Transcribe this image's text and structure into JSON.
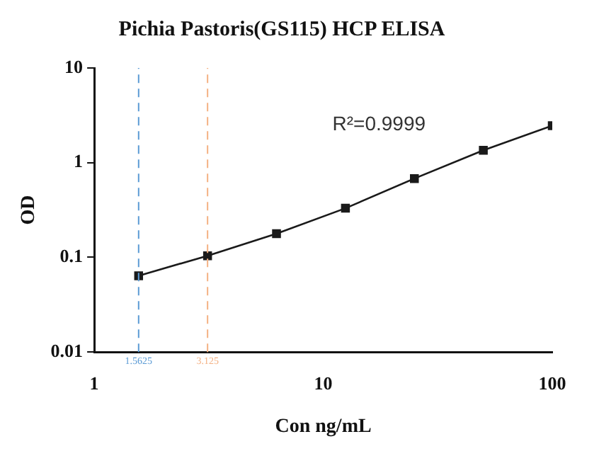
{
  "chart_data": {
    "type": "line",
    "title": "Pichia Pastoris(GS115) HCP ELISA",
    "xlabel": "Con ng/mL",
    "ylabel": "OD",
    "x": [
      1.5625,
      3.125,
      6.25,
      12.5,
      25,
      50,
      100
    ],
    "series": [
      {
        "color": "#1a1a1a",
        "values": [
          0.064,
          0.104,
          0.178,
          0.33,
          0.68,
          1.35,
          2.46
        ]
      }
    ],
    "xlim": [
      1,
      100
    ],
    "xticks": [
      1,
      10,
      100
    ],
    "ylim": [
      0.01,
      10
    ],
    "yticks": [
      0.01,
      0.1,
      1,
      10
    ],
    "log": "xy",
    "grid": false,
    "legend": false,
    "marker": "square",
    "line_style": "solid",
    "ref_lines": [
      {
        "axis": "x",
        "value": 1.5625,
        "label": "1.5625",
        "color": "#5b9bd5",
        "line_style": "dashed"
      },
      {
        "axis": "x",
        "value": 3.125,
        "label": "3.125",
        "color": "#f4b183",
        "line_style": "dashed"
      }
    ],
    "annotations": [
      "R²=0.9999"
    ]
  }
}
